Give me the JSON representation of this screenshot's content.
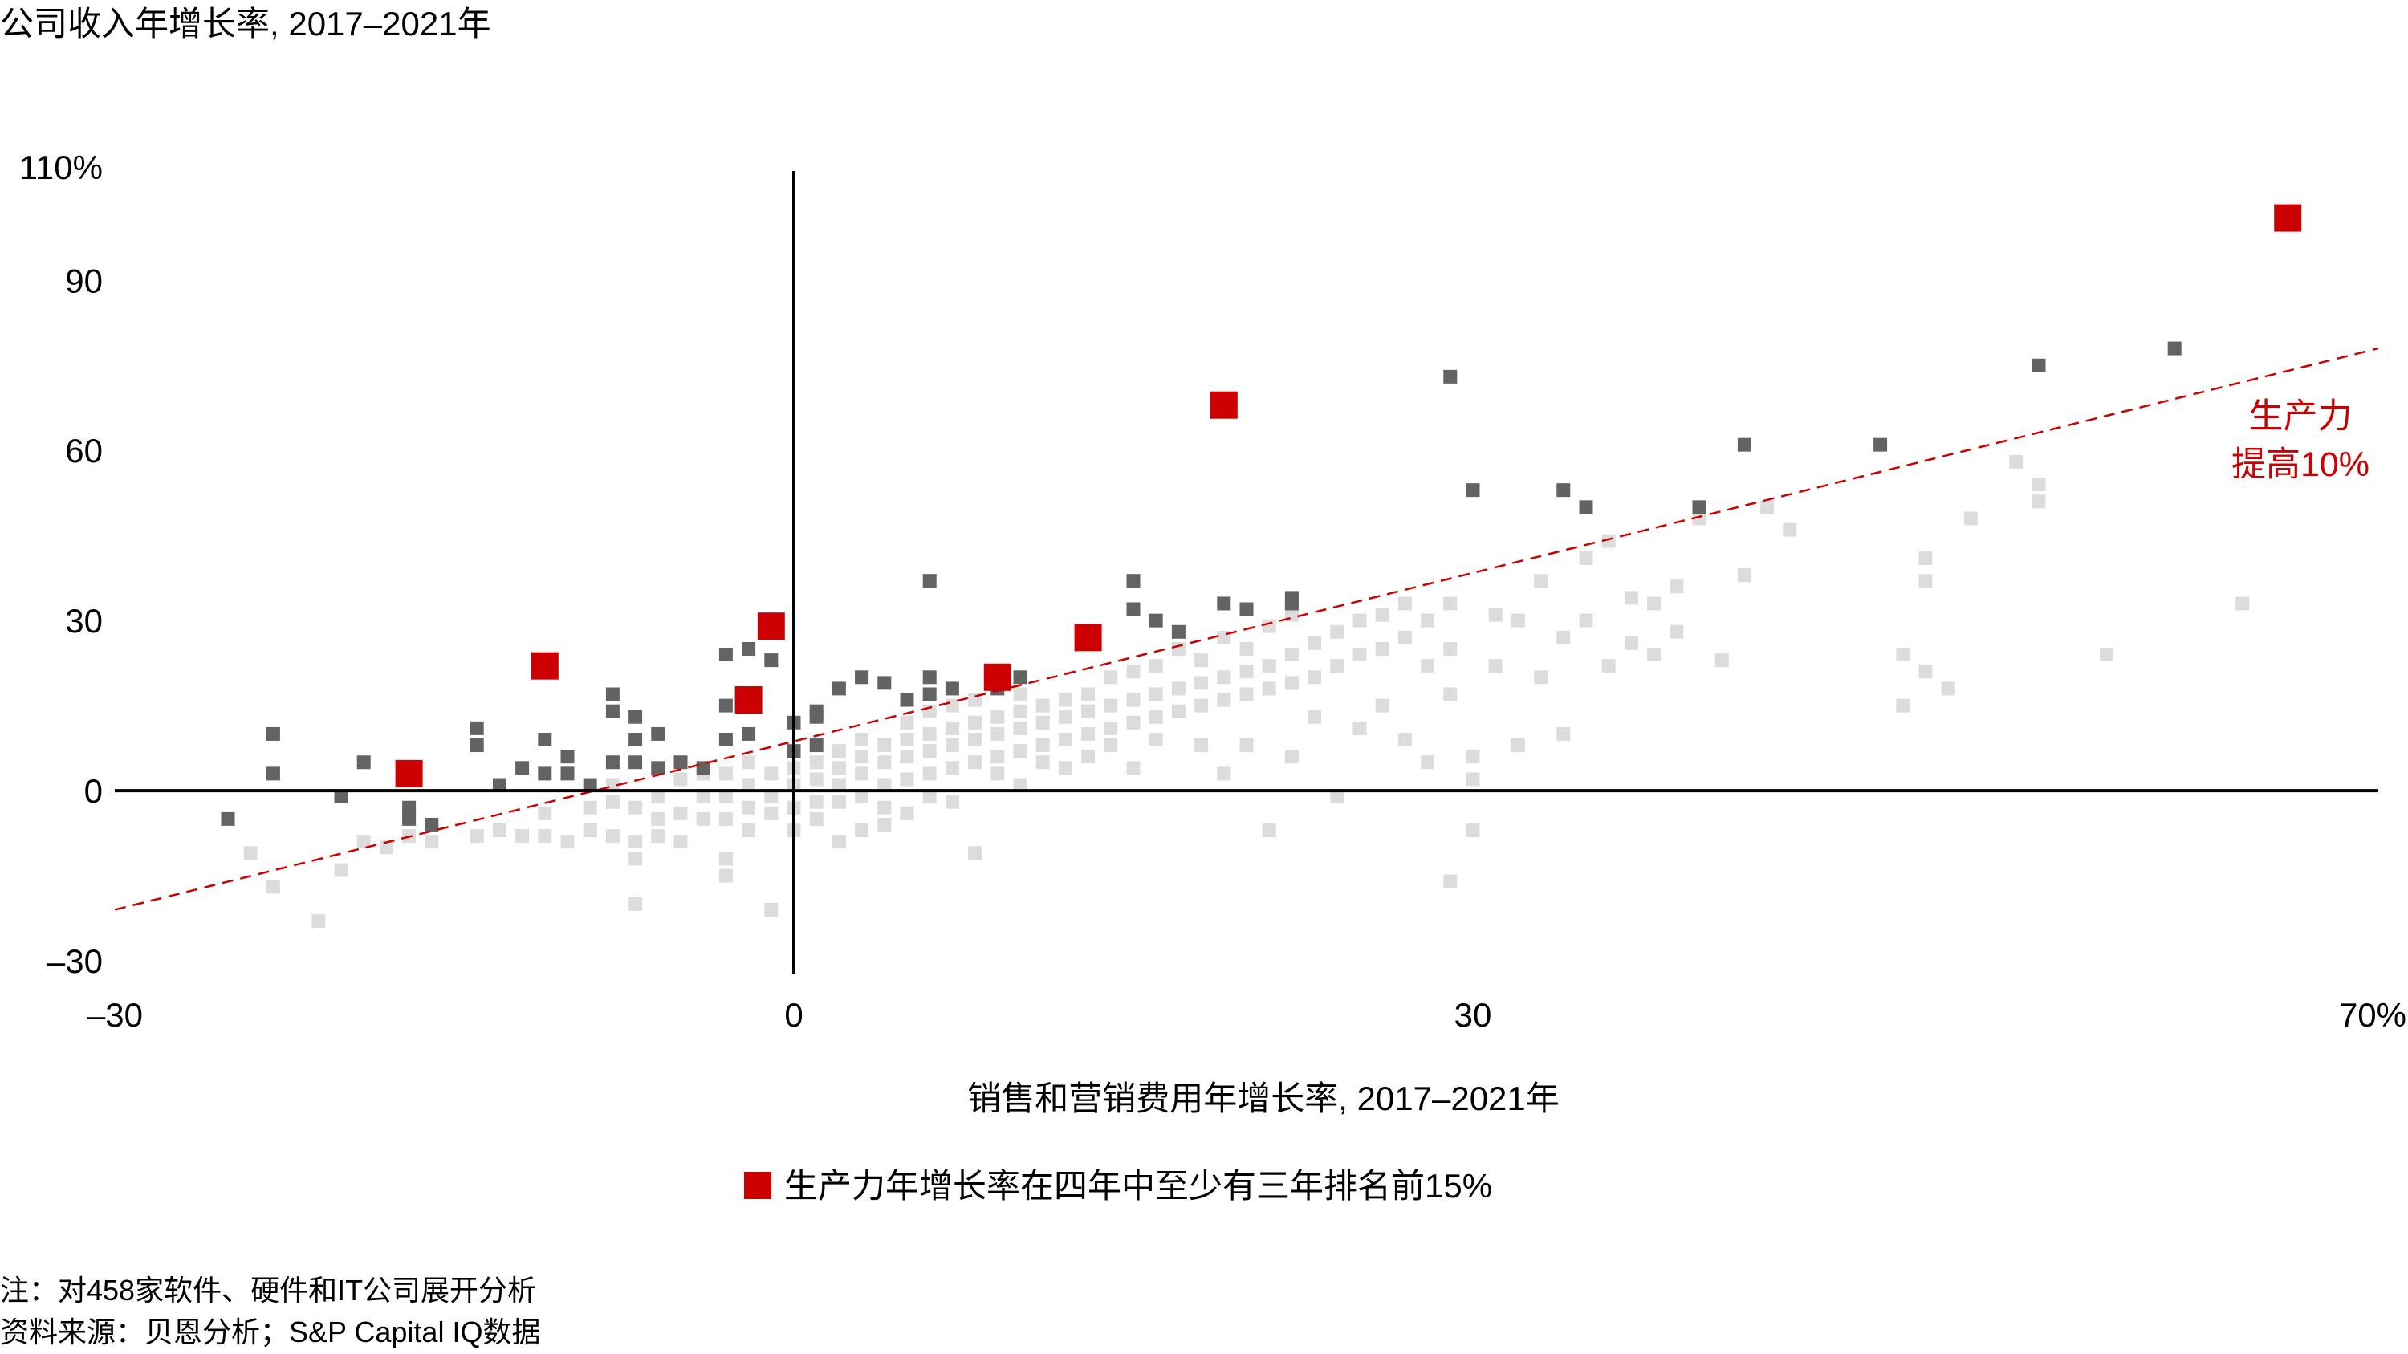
{
  "chart_data": {
    "type": "scatter",
    "title": "公司收入年增长率, 2017–2021年",
    "xlabel": "销售和营销费用年增长率, 2017–2021年",
    "xlim": [
      -30,
      70
    ],
    "ylim": [
      -30,
      110
    ],
    "x_ticks": [
      "–30",
      "0",
      "30",
      "70%"
    ],
    "y_ticks": [
      "110%",
      "90",
      "60",
      "30",
      "0",
      "–30"
    ],
    "annotation": "生产力\n提高10%",
    "legend": {
      "label": "生产力年增长率在四年中至少有三年排名前15%",
      "color": "#cc0000",
      "placement": "bottom-center"
    },
    "reference_line": {
      "style": "dashed",
      "color": "#cc0000",
      "from": [
        -30,
        -21
      ],
      "to": [
        70,
        78
      ]
    },
    "notes": [
      "注：对458家软件、硬件和IT公司展开分析",
      "资料来源：贝恩分析；S&P Capital IQ数据"
    ],
    "colors": {
      "highlight": "#cc0000",
      "dark": "#636363",
      "light": "#dcdcdc",
      "axis": "#000000"
    },
    "series": [
      {
        "name": "生产力年增长率在四年中至少有三年排名前15%",
        "marker": "square-large",
        "points": [
          [
            -17,
            3
          ],
          [
            -11,
            22
          ],
          [
            -2,
            16
          ],
          [
            -1,
            29
          ],
          [
            9,
            20
          ],
          [
            13,
            27
          ],
          [
            19,
            68
          ],
          [
            66,
            101
          ]
        ]
      },
      {
        "marker": "square-dark",
        "points": [
          [
            -23,
            10
          ],
          [
            -23,
            3
          ],
          [
            -25,
            -5
          ],
          [
            -19,
            5
          ],
          [
            -20,
            -1
          ],
          [
            -17,
            -5
          ],
          [
            -16,
            -6
          ],
          [
            -17,
            -3
          ],
          [
            -14,
            11
          ],
          [
            -14,
            8
          ],
          [
            -13,
            1
          ],
          [
            -12,
            4
          ],
          [
            -11,
            3
          ],
          [
            -11,
            9
          ],
          [
            -10,
            3
          ],
          [
            -10,
            6
          ],
          [
            -9,
            1
          ],
          [
            -8,
            5
          ],
          [
            -8,
            17
          ],
          [
            -8,
            14
          ],
          [
            -7,
            13
          ],
          [
            -7,
            9
          ],
          [
            -7,
            5
          ],
          [
            -6,
            10
          ],
          [
            -6,
            4
          ],
          [
            -5,
            5
          ],
          [
            -4,
            4
          ],
          [
            -3,
            24
          ],
          [
            -3,
            15
          ],
          [
            -3,
            9
          ],
          [
            -2,
            10
          ],
          [
            -2,
            25
          ],
          [
            -1,
            23
          ],
          [
            0,
            12
          ],
          [
            0,
            7
          ],
          [
            1,
            13
          ],
          [
            1,
            14
          ],
          [
            1,
            8
          ],
          [
            2,
            18
          ],
          [
            3,
            20
          ],
          [
            4,
            19
          ],
          [
            5,
            16
          ],
          [
            6,
            20
          ],
          [
            6,
            17
          ],
          [
            7,
            18
          ],
          [
            6,
            37
          ],
          [
            9,
            18
          ],
          [
            10,
            20
          ],
          [
            13,
            28
          ],
          [
            15,
            37
          ],
          [
            15,
            32
          ],
          [
            16,
            30
          ],
          [
            17,
            28
          ],
          [
            19,
            33
          ],
          [
            20,
            32
          ],
          [
            22,
            34
          ],
          [
            22,
            33
          ],
          [
            29,
            73
          ],
          [
            30,
            53
          ],
          [
            34,
            53
          ],
          [
            35,
            50
          ],
          [
            40,
            50
          ],
          [
            42,
            61
          ],
          [
            48,
            61
          ],
          [
            55,
            75
          ],
          [
            61,
            78
          ]
        ]
      },
      {
        "marker": "square-light",
        "points": [
          [
            -24,
            -11
          ],
          [
            -23,
            -17
          ],
          [
            -21,
            -23
          ],
          [
            -20,
            -14
          ],
          [
            -19,
            -9
          ],
          [
            -18,
            -10
          ],
          [
            -17,
            -8
          ],
          [
            -16,
            -9
          ],
          [
            -14,
            -8
          ],
          [
            -13,
            -7
          ],
          [
            -12,
            -8
          ],
          [
            -11,
            -8
          ],
          [
            -11,
            -4
          ],
          [
            -10,
            -9
          ],
          [
            -9,
            -7
          ],
          [
            -9,
            -3
          ],
          [
            -8,
            -8
          ],
          [
            -8,
            -2
          ],
          [
            -8,
            1
          ],
          [
            -7,
            -9
          ],
          [
            -7,
            -3
          ],
          [
            -7,
            -20
          ],
          [
            -7,
            -12
          ],
          [
            -6,
            -8
          ],
          [
            -6,
            -5
          ],
          [
            -6,
            -1
          ],
          [
            -5,
            -9
          ],
          [
            -5,
            -4
          ],
          [
            -5,
            2
          ],
          [
            -4,
            -5
          ],
          [
            -4,
            -1
          ],
          [
            -4,
            3
          ],
          [
            -3,
            -5
          ],
          [
            -3,
            -1
          ],
          [
            -3,
            3
          ],
          [
            -3,
            -12
          ],
          [
            -3,
            -15
          ],
          [
            -2,
            -7
          ],
          [
            -2,
            -3
          ],
          [
            -2,
            1
          ],
          [
            -2,
            5
          ],
          [
            -1,
            -4
          ],
          [
            -1,
            -1
          ],
          [
            -1,
            3
          ],
          [
            -1,
            -21
          ],
          [
            0,
            -3
          ],
          [
            0,
            -7
          ],
          [
            0,
            1
          ],
          [
            0,
            4
          ],
          [
            1,
            -5
          ],
          [
            1,
            -2
          ],
          [
            1,
            2
          ],
          [
            1,
            5
          ],
          [
            2,
            -2
          ],
          [
            2,
            1
          ],
          [
            2,
            4
          ],
          [
            2,
            7
          ],
          [
            2,
            -9
          ],
          [
            3,
            -1
          ],
          [
            3,
            3
          ],
          [
            3,
            6
          ],
          [
            3,
            9
          ],
          [
            3,
            -7
          ],
          [
            4,
            -3
          ],
          [
            4,
            1
          ],
          [
            4,
            5
          ],
          [
            4,
            8
          ],
          [
            4,
            -6
          ],
          [
            5,
            2
          ],
          [
            5,
            6
          ],
          [
            5,
            9
          ],
          [
            5,
            12
          ],
          [
            5,
            -4
          ],
          [
            6,
            3
          ],
          [
            6,
            7
          ],
          [
            6,
            10
          ],
          [
            6,
            14
          ],
          [
            6,
            -1
          ],
          [
            7,
            4
          ],
          [
            7,
            8
          ],
          [
            7,
            11
          ],
          [
            7,
            15
          ],
          [
            7,
            -2
          ],
          [
            8,
            5
          ],
          [
            8,
            9
          ],
          [
            8,
            12
          ],
          [
            8,
            16
          ],
          [
            8,
            -11
          ],
          [
            9,
            6
          ],
          [
            9,
            10
          ],
          [
            9,
            13
          ],
          [
            9,
            3
          ],
          [
            10,
            7
          ],
          [
            10,
            11
          ],
          [
            10,
            14
          ],
          [
            10,
            17
          ],
          [
            10,
            1
          ],
          [
            11,
            8
          ],
          [
            11,
            12
          ],
          [
            11,
            15
          ],
          [
            11,
            5
          ],
          [
            12,
            9
          ],
          [
            12,
            13
          ],
          [
            12,
            16
          ],
          [
            12,
            4
          ],
          [
            13,
            10
          ],
          [
            13,
            14
          ],
          [
            13,
            17
          ],
          [
            13,
            6
          ],
          [
            14,
            11
          ],
          [
            14,
            15
          ],
          [
            14,
            20
          ],
          [
            14,
            8
          ],
          [
            15,
            12
          ],
          [
            15,
            16
          ],
          [
            15,
            21
          ],
          [
            15,
            4
          ],
          [
            16,
            13
          ],
          [
            16,
            17
          ],
          [
            16,
            22
          ],
          [
            16,
            9
          ],
          [
            17,
            14
          ],
          [
            17,
            18
          ],
          [
            17,
            25
          ],
          [
            18,
            15
          ],
          [
            18,
            19
          ],
          [
            18,
            23
          ],
          [
            18,
            8
          ],
          [
            19,
            16
          ],
          [
            19,
            20
          ],
          [
            19,
            27
          ],
          [
            19,
            3
          ],
          [
            20,
            17
          ],
          [
            20,
            21
          ],
          [
            20,
            25
          ],
          [
            20,
            8
          ],
          [
            21,
            18
          ],
          [
            21,
            22
          ],
          [
            21,
            29
          ],
          [
            21,
            -7
          ],
          [
            22,
            19
          ],
          [
            22,
            24
          ],
          [
            22,
            31
          ],
          [
            22,
            6
          ],
          [
            23,
            20
          ],
          [
            23,
            26
          ],
          [
            23,
            13
          ],
          [
            24,
            22
          ],
          [
            24,
            28
          ],
          [
            24,
            -1
          ],
          [
            25,
            24
          ],
          [
            25,
            30
          ],
          [
            25,
            11
          ],
          [
            26,
            25
          ],
          [
            26,
            31
          ],
          [
            26,
            15
          ],
          [
            27,
            27
          ],
          [
            27,
            33
          ],
          [
            27,
            9
          ],
          [
            28,
            22
          ],
          [
            28,
            30
          ],
          [
            28,
            5
          ],
          [
            29,
            17
          ],
          [
            29,
            25
          ],
          [
            29,
            33
          ],
          [
            29,
            -16
          ],
          [
            30,
            6
          ],
          [
            30,
            2
          ],
          [
            30,
            -7
          ],
          [
            31,
            31
          ],
          [
            31,
            22
          ],
          [
            32,
            30
          ],
          [
            32,
            8
          ],
          [
            33,
            37
          ],
          [
            33,
            20
          ],
          [
            34,
            27
          ],
          [
            34,
            10
          ],
          [
            35,
            41
          ],
          [
            35,
            30
          ],
          [
            36,
            44
          ],
          [
            36,
            22
          ],
          [
            37,
            34
          ],
          [
            37,
            26
          ],
          [
            38,
            33
          ],
          [
            38,
            24
          ],
          [
            39,
            36
          ],
          [
            39,
            28
          ],
          [
            40,
            48
          ],
          [
            41,
            23
          ],
          [
            42,
            38
          ],
          [
            43,
            50
          ],
          [
            44,
            46
          ],
          [
            49,
            24
          ],
          [
            49,
            15
          ],
          [
            50,
            41
          ],
          [
            50,
            37
          ],
          [
            50,
            21
          ],
          [
            51,
            18
          ],
          [
            52,
            48
          ],
          [
            54,
            58
          ],
          [
            55,
            51
          ],
          [
            55,
            54
          ],
          [
            58,
            24
          ],
          [
            64,
            33
          ]
        ]
      }
    ]
  }
}
